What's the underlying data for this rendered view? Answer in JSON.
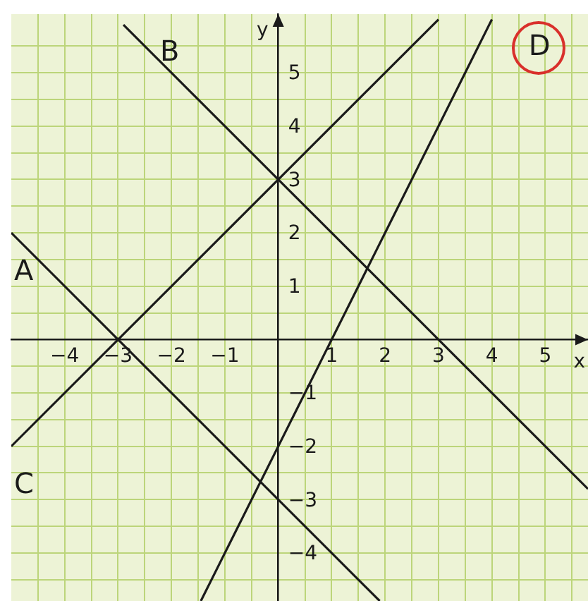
{
  "chart_data": {
    "type": "line",
    "xlabel": "x",
    "ylabel": "y",
    "series": [
      {
        "name": "A",
        "color": "#1a1a1a",
        "x": [
          -5,
          1.9
        ],
        "values": [
          2,
          -4.9
        ]
      },
      {
        "name": "B",
        "color": "#1a1a1a",
        "x": [
          -2.9,
          5.8
        ],
        "values": [
          5.9,
          -2.8
        ]
      },
      {
        "name": "C",
        "color": "#1a1a1a",
        "x": [
          -5,
          3
        ],
        "values": [
          -2,
          6
        ]
      },
      {
        "name": "D",
        "color": "#1a1a1a",
        "x": [
          -1.45,
          4
        ],
        "values": [
          -4.9,
          6
        ]
      }
    ],
    "xlim": [
      -5,
      5.8
    ],
    "ylim": [
      -4.9,
      6.1
    ],
    "xticks": [
      {
        "value": -4.5,
        "label": null
      },
      {
        "value": -4,
        "label": "−4"
      },
      {
        "value": -3.5,
        "label": null
      },
      {
        "value": -3,
        "label": "−3"
      },
      {
        "value": -2.5,
        "label": null
      },
      {
        "value": -2,
        "label": "−2"
      },
      {
        "value": -1.5,
        "label": null
      },
      {
        "value": -1,
        "label": "−1"
      },
      {
        "value": -0.5,
        "label": null
      },
      {
        "value": 0.5,
        "label": null
      },
      1,
      {
        "value": 1.5,
        "label": null
      },
      2,
      {
        "value": 2.5,
        "label": null
      },
      3,
      {
        "value": 3.5,
        "label": null
      },
      4,
      {
        "value": 4.5,
        "label": null
      },
      5,
      {
        "value": 5.5,
        "label": null
      }
    ],
    "yticks": [
      {
        "value": -4.5,
        "label": null
      },
      {
        "value": -4,
        "label": "−4"
      },
      {
        "value": -3.5,
        "label": null
      },
      {
        "value": -3,
        "label": "−3"
      },
      {
        "value": -2.5,
        "label": null
      },
      {
        "value": -2,
        "label": "−2"
      },
      {
        "value": -1.5,
        "label": null
      },
      {
        "value": -1,
        "label": "−1"
      },
      {
        "value": -0.5,
        "label": null
      },
      {
        "value": 0.5,
        "label": null
      },
      1,
      {
        "value": 1.5,
        "label": null
      },
      2,
      {
        "value": 2.5,
        "label": null
      },
      3,
      {
        "value": 3.5,
        "label": null
      },
      4,
      {
        "value": 4.5,
        "label": null
      },
      5,
      {
        "value": 5.5,
        "label": null
      }
    ],
    "grid": true,
    "marker": "none",
    "line_style": "solid"
  }
}
